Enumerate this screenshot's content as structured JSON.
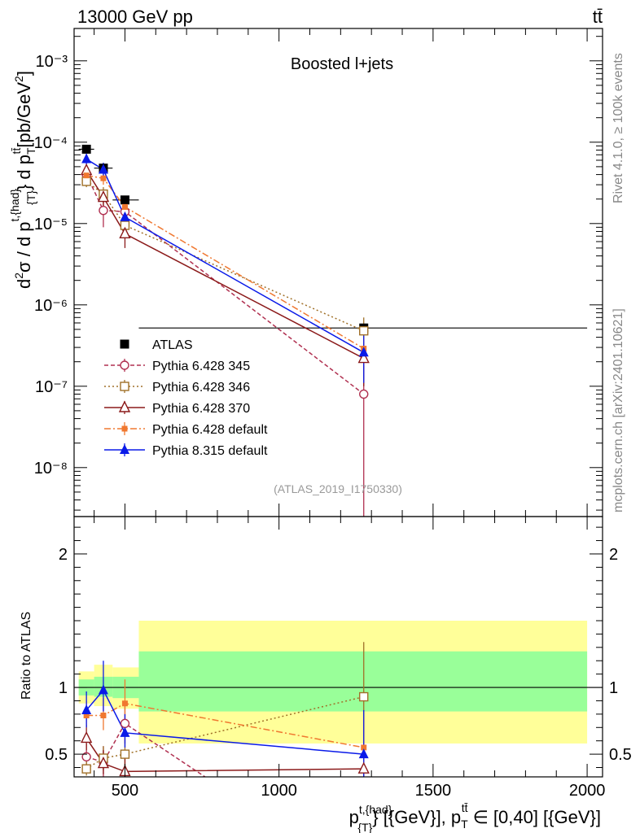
{
  "header": {
    "left": "13000 GeV pp",
    "right": "tt̄"
  },
  "side_labels": {
    "rivet": "Rivet 4.1.0, ≥ 100k events",
    "mcplots": "mcplots.cern.ch [arXiv:2401.10621]"
  },
  "chart_data": [
    {
      "type": "line",
      "panel": "main",
      "title": "Boosted l+jets",
      "watermark": "(ATLAS_2019_I1750330)",
      "ylabel": "d²σ / d p_T^{t,{had}} d p_T^{tt̄} [pb/GeV²]",
      "ylabel_parts": {
        "d2sigma": "d",
        "sup2": "2",
        "sigma": "σ  /  d p",
        "sub_t": "{T}",
        "sup_t": "t,{had}",
        "mid": "} d p",
        "sub_tt": "T",
        "sup_tt": "tt̄",
        "unit": "[pb/GeV",
        "unit_sup": "2",
        "close": "]"
      },
      "yscale": "log",
      "xlim": [
        335,
        2050
      ],
      "ylim": [
        2.5e-09,
        0.0025
      ],
      "ytick_labels": [
        "10⁻³",
        "10⁻⁴",
        "10⁻⁵",
        "10⁻⁶",
        "10⁻⁷",
        "10⁻⁸"
      ],
      "ytick_values": [
        0.001,
        0.0001,
        1e-05,
        1e-06,
        1e-07,
        1e-08
      ],
      "legend": {
        "placement": "center-left"
      },
      "series": [
        {
          "name": "ATLAS",
          "style": "data",
          "marker": "square-filled",
          "color": "#000000",
          "x": [
            375,
            430,
            500,
            1275
          ],
          "y": [
            8.2e-05,
            4.8e-05,
            1.95e-05,
            5.2e-07
          ],
          "bins": [
            [
              350,
              400
            ],
            [
              400,
              460
            ],
            [
              460,
              545
            ],
            [
              545,
              2000
            ]
          ],
          "bin_heights": [
            8.2e-05,
            4.8e-05,
            1.95e-05,
            5.2e-07
          ]
        },
        {
          "name": "Pythia 6.428 345",
          "marker": "circle-open",
          "color": "#b03050",
          "dash": "5,3",
          "x": [
            375,
            430,
            500,
            1275
          ],
          "y": [
            4e-05,
            1.45e-05,
            1.4e-05,
            8e-08
          ],
          "err": [
            [
              3.2e-05,
              4.8e-05
            ],
            [
              9e-06,
              2e-05
            ],
            [
              1e-05,
              1.8e-05
            ],
            [
              1e-10,
              2.2e-07
            ]
          ]
        },
        {
          "name": "Pythia 6.428 346",
          "marker": "square-open",
          "color": "#a07028",
          "dash": "2,3",
          "x": [
            375,
            430,
            500,
            1275
          ],
          "y": [
            3.3e-05,
            2.3e-05,
            9.5e-06,
            4.8e-07
          ],
          "err": [
            [
              2.8e-05,
              3.8e-05
            ],
            [
              1.8e-05,
              2.8e-05
            ],
            [
              7e-06,
              1.2e-05
            ],
            [
              3e-07,
              7e-07
            ]
          ]
        },
        {
          "name": "Pythia 6.428 370",
          "marker": "triangle-open",
          "color": "#8b1a1a",
          "dash": "",
          "x": [
            375,
            430,
            500,
            1275
          ],
          "y": [
            4.5e-05,
            2.1e-05,
            7.5e-06,
            2.2e-07
          ],
          "err": [
            [
              3.8e-05,
              5.2e-05
            ],
            [
              1.6e-05,
              2.6e-05
            ],
            [
              5e-06,
              1e-05
            ],
            [
              1e-07,
              3.5e-07
            ]
          ]
        },
        {
          "name": "Pythia 6.428 default",
          "marker": "square-filled-small",
          "color": "#f07830",
          "dash": "8,3,2,3",
          "x": [
            375,
            430,
            500,
            1275
          ],
          "y": [
            3.9e-05,
            3.6e-05,
            1.6e-05,
            2.9e-07
          ],
          "err": [
            [
              3.4e-05,
              4.4e-05
            ],
            [
              3e-05,
              4.2e-05
            ],
            [
              1.3e-05,
              1.9e-05
            ],
            [
              1.8e-07,
              4e-07
            ]
          ]
        },
        {
          "name": "Pythia 8.315 default",
          "marker": "triangle-filled",
          "color": "#0a1ae8",
          "dash": "",
          "x": [
            375,
            430,
            500,
            1275
          ],
          "y": [
            6.2e-05,
            4.6e-05,
            1.2e-05,
            2.6e-07
          ],
          "err": [
            [
              5.3e-05,
              7.2e-05
            ],
            [
              3.6e-05,
              5.6e-05
            ],
            [
              1e-05,
              1.45e-05
            ],
            [
              1.1e-07,
              4.2e-07
            ]
          ]
        }
      ]
    },
    {
      "type": "line",
      "panel": "ratio",
      "ylabel": "Ratio to ATLAS",
      "xlabel": "p_T^{t,{had}} [{GeV}], p_T^{tt̄} ∈ [0,40] [{GeV}]",
      "xlabel_parts": {
        "p1": "p",
        "sup1": "t,{had}",
        "sub1": "{T}",
        "mid": "} [{GeV}], p",
        "sub2": "T",
        "sup2": "tt̄",
        "tail": " ∈ [0,40] [{GeV}]"
      },
      "xlim": [
        335,
        2050
      ],
      "ylim": [
        0.33,
        2.28
      ],
      "xtick_labels": [
        "500",
        "1000",
        "1500",
        "2000"
      ],
      "xtick_values": [
        500,
        1000,
        1500,
        2000
      ],
      "ytick_labels": [
        "0.5",
        "1",
        "2"
      ],
      "ytick_values": [
        0.5,
        1,
        2
      ],
      "bands": [
        {
          "x0": 350,
          "x1": 400,
          "yellow": [
            0.88,
            1.12
          ],
          "green": [
            0.94,
            1.06
          ]
        },
        {
          "x0": 400,
          "x1": 460,
          "yellow": [
            0.86,
            1.17
          ],
          "green": [
            0.93,
            1.08
          ]
        },
        {
          "x0": 460,
          "x1": 545,
          "yellow": [
            0.84,
            1.15
          ],
          "green": [
            0.92,
            1.08
          ]
        },
        {
          "x0": 545,
          "x1": 2000,
          "yellow": [
            0.58,
            1.5
          ],
          "green": [
            0.82,
            1.27
          ]
        }
      ],
      "series": [
        {
          "name": "Pythia 6.428 345",
          "x": [
            375,
            430,
            500,
            760
          ],
          "y": [
            0.48,
            0.44,
            0.73,
            0.33
          ],
          "err": [
            [
              0.4,
              0.58
            ],
            [
              0.33,
              0.56
            ],
            [
              0.58,
              0.9
            ],
            [
              0.33,
              0.33
            ]
          ]
        },
        {
          "name": "Pythia 6.428 346",
          "x": [
            375,
            430,
            500,
            1275
          ],
          "y": [
            0.39,
            0.47,
            0.5,
            0.93
          ],
          "err": [
            [
              0.34,
              0.45
            ],
            [
              0.38,
              0.56
            ],
            [
              0.4,
              0.62
            ],
            [
              0.6,
              1.34
            ]
          ]
        },
        {
          "name": "Pythia 6.428 370",
          "x": [
            375,
            430,
            500,
            1275
          ],
          "y": [
            0.62,
            0.43,
            0.37,
            0.39
          ],
          "err": [
            [
              0.53,
              0.72
            ],
            [
              0.35,
              0.53
            ],
            [
              0.3,
              0.48
            ],
            [
              0.2,
              0.6
            ]
          ]
        },
        {
          "name": "Pythia 6.428 default",
          "x": [
            375,
            430,
            500,
            1275
          ],
          "y": [
            0.79,
            0.79,
            0.88,
            0.55
          ],
          "err": [
            [
              0.7,
              0.9
            ],
            [
              0.68,
              0.92
            ],
            [
              0.74,
              1.06
            ],
            [
              0.35,
              0.78
            ]
          ]
        },
        {
          "name": "Pythia 8.315 default",
          "x": [
            375,
            430,
            500,
            1275
          ],
          "y": [
            0.83,
            0.98,
            0.66,
            0.5
          ],
          "err": [
            [
              0.7,
              0.97
            ],
            [
              0.82,
              1.2
            ],
            [
              0.55,
              0.8
            ],
            [
              0.25,
              0.83
            ]
          ]
        }
      ]
    }
  ]
}
